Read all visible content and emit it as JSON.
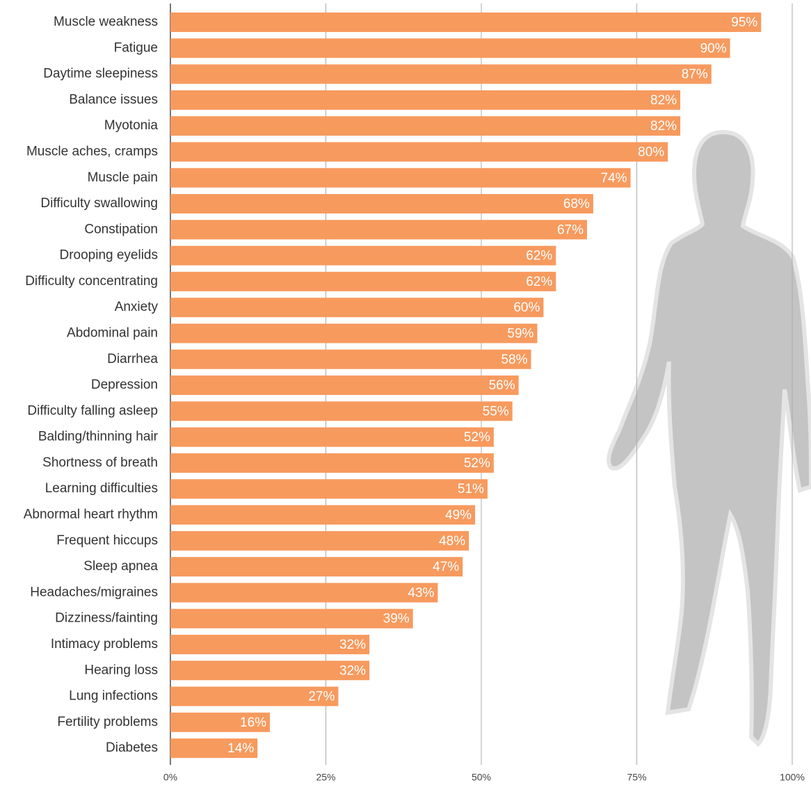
{
  "chart_data": {
    "type": "bar",
    "orientation": "horizontal",
    "categories": [
      "Muscle weakness",
      "Fatigue",
      "Daytime sleepiness",
      "Balance issues",
      "Myotonia",
      "Muscle aches, cramps",
      "Muscle pain",
      "Difficulty swallowing",
      "Constipation",
      "Drooping eyelids",
      "Difficulty concentrating",
      "Anxiety",
      "Abdominal pain",
      "Diarrhea",
      "Depression",
      "Difficulty falling asleep",
      "Balding/thinning hair",
      "Shortness of breath",
      "Learning difficulties",
      "Abnormal heart rhythm",
      "Frequent hiccups",
      "Sleep apnea",
      "Headaches/migraines",
      "Dizziness/fainting",
      "Intimacy problems",
      "Hearing loss",
      "Lung infections",
      "Fertility problems",
      "Diabetes"
    ],
    "values": [
      95,
      90,
      87,
      82,
      82,
      80,
      74,
      68,
      67,
      62,
      62,
      60,
      59,
      58,
      56,
      55,
      52,
      52,
      51,
      49,
      48,
      47,
      43,
      39,
      32,
      32,
      27,
      16,
      14
    ],
    "value_labels": [
      "95%",
      "90%",
      "87%",
      "82%",
      "82%",
      "80%",
      "74%",
      "68%",
      "67%",
      "62%",
      "62%",
      "60%",
      "59%",
      "58%",
      "56%",
      "55%",
      "52%",
      "52%",
      "51%",
      "49%",
      "48%",
      "47%",
      "43%",
      "39%",
      "32%",
      "32%",
      "27%",
      "16%",
      "14%"
    ],
    "color": "#f79a5e",
    "xlim": [
      0,
      100
    ],
    "xticks": [
      {
        "value": 0,
        "label": "0%"
      },
      {
        "value": 25,
        "label": "25%"
      },
      {
        "value": 50,
        "label": "50%"
      },
      {
        "value": 75,
        "label": "75%"
      },
      {
        "value": 100,
        "label": "100%"
      }
    ],
    "grid": true
  }
}
